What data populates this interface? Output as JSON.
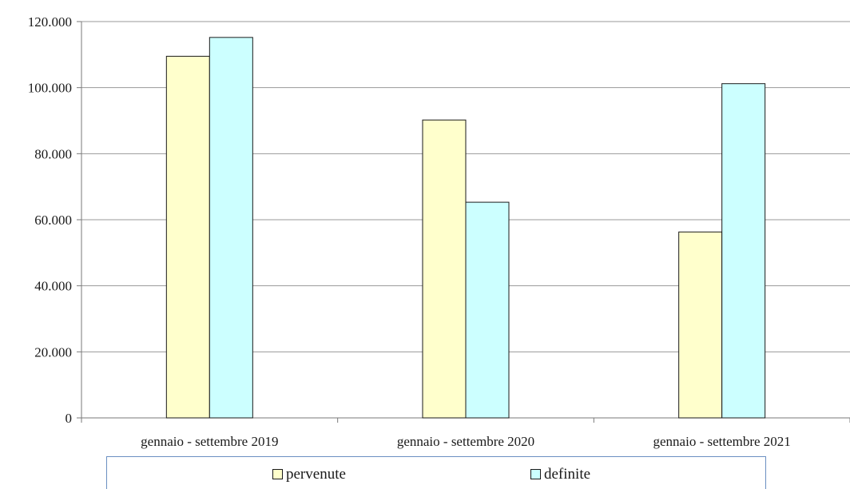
{
  "chart_data": {
    "type": "bar",
    "categories": [
      "gennaio - settembre 2019",
      "gennaio - settembre 2020",
      "gennaio - settembre 2021"
    ],
    "series": [
      {
        "name": "pervenute",
        "values": [
          109500,
          90200,
          56300
        ],
        "color": "#ffffcc"
      },
      {
        "name": "definite",
        "values": [
          115200,
          65300,
          101200
        ],
        "color": "#ccffff"
      }
    ],
    "yticks": [
      "0",
      "20.000",
      "40.000",
      "60.000",
      "80.000",
      "100.000",
      "120.000"
    ],
    "ylim": [
      0,
      120000
    ],
    "grid": true,
    "legend_position": "bottom",
    "title": "",
    "xlabel": "",
    "ylabel": ""
  },
  "legend": {
    "items": [
      {
        "label": "pervenute",
        "color": "#ffffcc"
      },
      {
        "label": "definite",
        "color": "#ccffff"
      }
    ]
  }
}
